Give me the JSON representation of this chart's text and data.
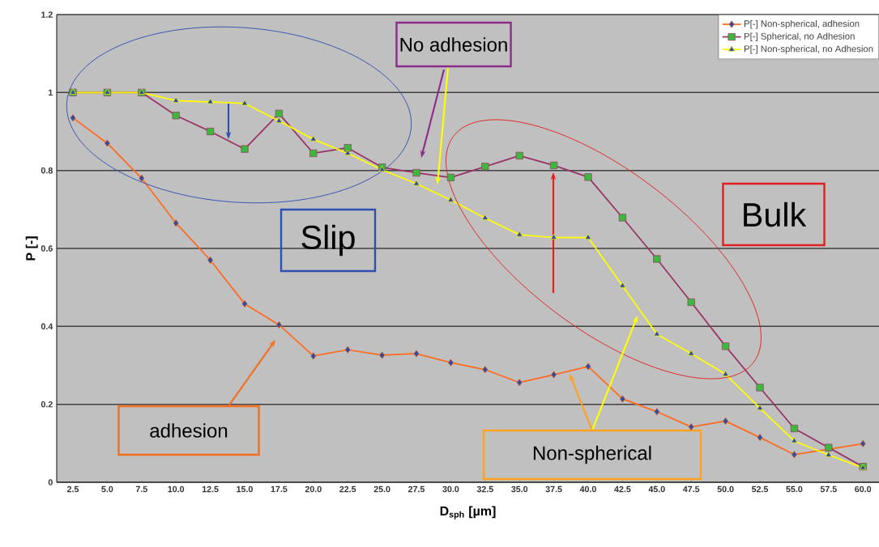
{
  "chart_data": {
    "type": "line",
    "xlabel": "D$_{sph}$ [µm]",
    "ylabel": "P [-]",
    "categories": [
      "2.5",
      "5.0",
      "7.5",
      "10.0",
      "12.5",
      "15.0",
      "17.5",
      "20.0",
      "22.5",
      "25.0",
      "27.5",
      "30.0",
      "32.5",
      "35.0",
      "37.5",
      "40.0",
      "42.5",
      "45.0",
      "47.5",
      "50.0",
      "52.5",
      "55.0",
      "57.5",
      "60.0"
    ],
    "series": [
      {
        "name": "P[-] Non-spherical, adhesion",
        "color": "#ff6a1f",
        "marker": "diamond",
        "values": [
          0.935,
          0.87,
          0.78,
          0.665,
          0.57,
          0.458,
          0.404,
          0.324,
          0.34,
          0.326,
          0.33,
          0.307,
          0.289,
          0.256,
          0.276,
          0.297,
          0.214,
          0.181,
          0.142,
          0.157,
          0.115,
          0.071,
          0.085,
          0.099
        ]
      },
      {
        "name": "P[-] Spherical, no Adhesion",
        "color": "#993366",
        "marker": "square",
        "values": [
          1.0,
          1.0,
          1.0,
          0.941,
          0.9,
          0.855,
          0.946,
          0.844,
          0.858,
          0.808,
          0.794,
          0.782,
          0.81,
          0.838,
          0.813,
          0.783,
          0.679,
          0.573,
          0.462,
          0.349,
          0.243,
          0.138,
          0.089,
          0.04
        ]
      },
      {
        "name": "P[-] Non-spherical, no Adhesion",
        "color": "#ffff00",
        "marker": "triangle",
        "values": [
          1.0,
          1.0,
          1.0,
          0.979,
          0.976,
          0.972,
          0.927,
          0.88,
          0.844,
          0.802,
          0.766,
          0.724,
          0.678,
          0.635,
          0.628,
          0.628,
          0.504,
          0.38,
          0.33,
          0.277,
          0.19,
          0.106,
          0.07,
          0.037
        ]
      }
    ],
    "ylim": [
      0,
      1.2
    ],
    "yticks": [
      0,
      0.2,
      0.4,
      0.6,
      0.8,
      1,
      1.2
    ],
    "grid": "y",
    "legend": "top right",
    "annotations": [
      "No adhesion",
      "Slip",
      "Bulk",
      "adhesion",
      "Non-spherical"
    ]
  }
}
